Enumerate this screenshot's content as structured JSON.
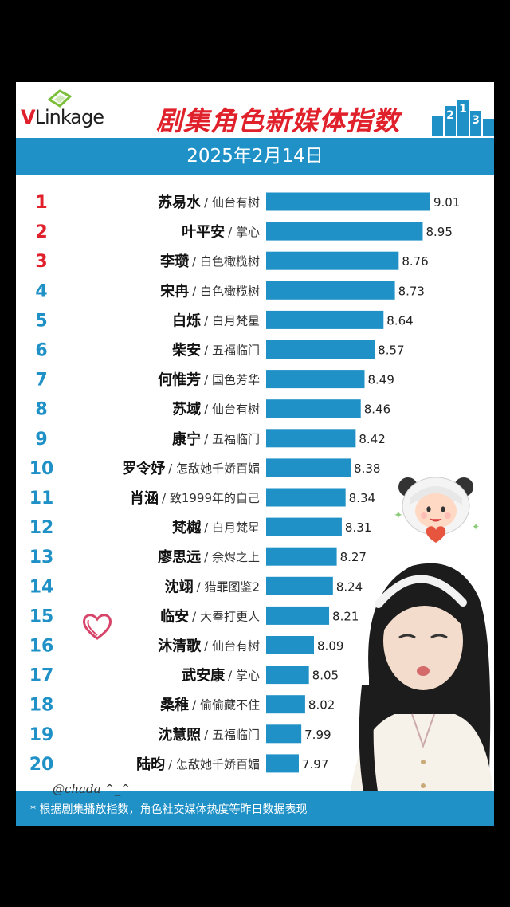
{
  "header": {
    "logo_v": "V",
    "logo_rest": "Linkage",
    "title": "剧集角色新媒体指数",
    "date": "2025年2月14日"
  },
  "footer": {
    "note": "* 根据剧集播放指数，角色社交媒体热度等昨日数据表现"
  },
  "overlay": {
    "handle": "@chada ^_^"
  },
  "colors": {
    "bar": "#1f91c6",
    "rank": "#e0202a",
    "rank_alt": "#1f91c6",
    "title": "#e0202a"
  },
  "chart_data": {
    "type": "bar",
    "orientation": "horizontal",
    "title": "剧集角色新媒体指数",
    "subtitle": "2025年2月14日",
    "xlim": [
      7.8,
      9.01
    ],
    "ranks": [
      "1",
      "2",
      "3",
      "4",
      "5",
      "6",
      "7",
      "8",
      "9",
      "10",
      "11",
      "12",
      "13",
      "14",
      "15",
      "16",
      "17",
      "18",
      "19",
      "20"
    ],
    "characters": [
      "苏易水",
      "叶平安",
      "李瓒",
      "宋冉",
      "白烁",
      "柴安",
      "何惟芳",
      "苏域",
      "康宁",
      "罗令妤",
      "肖涵",
      "梵樾",
      "廖思远",
      "沈翊",
      "临安",
      "沐清歌",
      "武安康",
      "桑稚",
      "沈慧照",
      "陆昀"
    ],
    "shows": [
      "仙台有树",
      "掌心",
      "白色橄榄树",
      "白色橄榄树",
      "白月梵星",
      "五福临门",
      "国色芳华",
      "仙台有树",
      "五福临门",
      "怎敌她千娇百媚",
      "致1999年的自己",
      "白月梵星",
      "余烬之上",
      "猎罪图鉴2",
      "大奉打更人",
      "仙台有树",
      "掌心",
      "偷偷藏不住",
      "五福临门",
      "怎敌她千娇百媚"
    ],
    "values": [
      9.01,
      8.95,
      8.76,
      8.73,
      8.64,
      8.57,
      8.49,
      8.46,
      8.42,
      8.38,
      8.34,
      8.31,
      8.27,
      8.24,
      8.21,
      8.09,
      8.05,
      8.02,
      7.99,
      7.97
    ],
    "value_labels": [
      "9.01",
      "8.95",
      "8.76",
      "8.73",
      "8.64",
      "8.57",
      "8.49",
      "8.46",
      "8.42",
      "8.38",
      "8.34",
      "8.31",
      "8.27",
      "8.24",
      "8.21",
      "8.09",
      "8.05",
      "8.02",
      "7.99",
      "7.97"
    ]
  }
}
